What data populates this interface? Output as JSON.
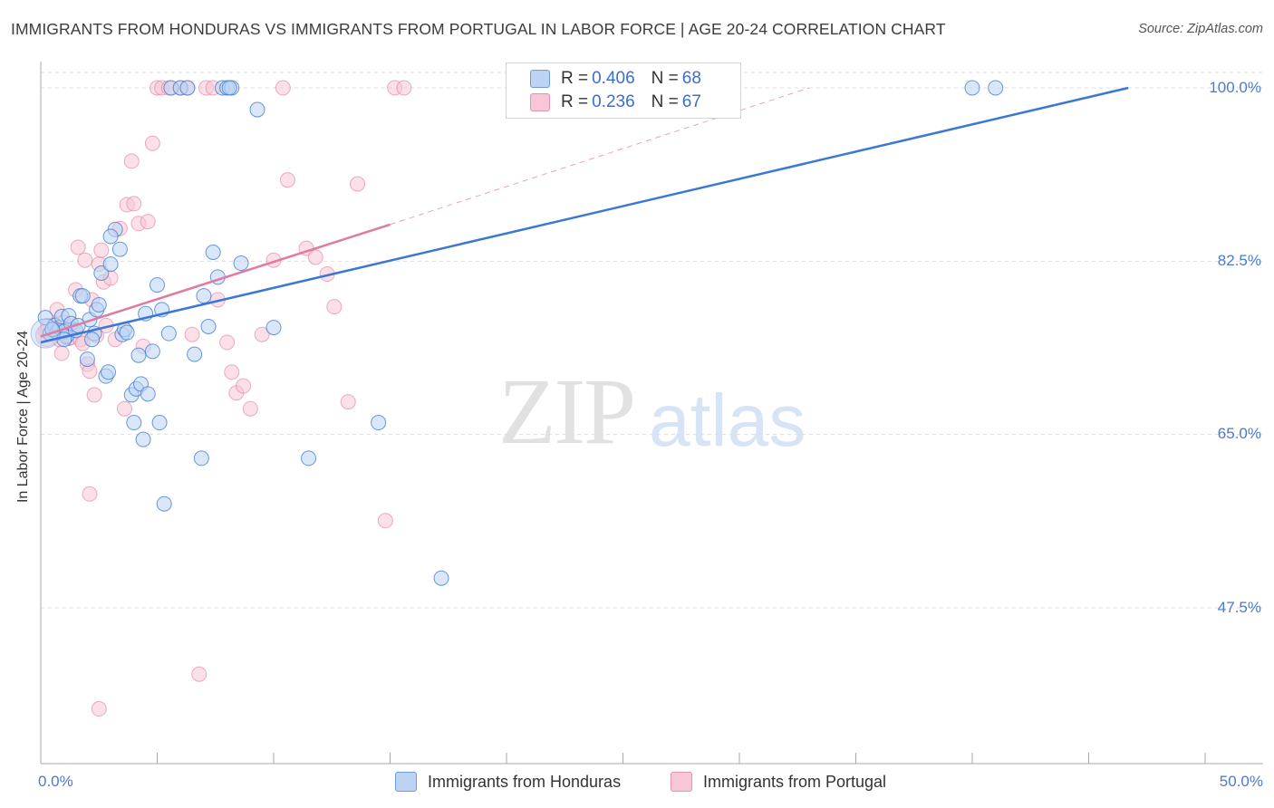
{
  "header": {
    "title": "IMMIGRANTS FROM HONDURAS VS IMMIGRANTS FROM PORTUGAL IN LABOR FORCE | AGE 20-24 CORRELATION CHART",
    "source": "Source: ZipAtlas.com"
  },
  "watermark": {
    "zip": "ZIP",
    "atlas": "atlas"
  },
  "legend": {
    "honduras": {
      "r_label": "R = ",
      "r_value": "0.406",
      "n_label": "N = ",
      "n_value": "68"
    },
    "portugal": {
      "r_label": "R = ",
      "r_value": "0.236",
      "n_label": "N = ",
      "n_value": "67"
    }
  },
  "chart_data": {
    "type": "scatter",
    "title": "IMMIGRANTS FROM HONDURAS VS IMMIGRANTS FROM PORTUGAL IN LABOR FORCE | AGE 20-24 CORRELATION CHART",
    "xlabel": "",
    "ylabel": "In Labor Force | Age 20-24",
    "xlim": [
      0,
      50
    ],
    "ylim": [
      33,
      100
    ],
    "x_tick_labels": [
      "0.0%",
      "50.0%"
    ],
    "y_ticks": [
      47.5,
      65.0,
      82.5,
      100.0
    ],
    "y_tick_labels": [
      "47.5%",
      "65.0%",
      "82.5%",
      "100.0%"
    ],
    "grid": true,
    "colors": {
      "honduras": "#3a78d4",
      "portugal": "#e07aa0",
      "honduras_fill": "#bcd3f3",
      "portugal_fill": "#f8c6d6"
    },
    "series": [
      {
        "name": "Immigrants from Honduras",
        "r": 0.406,
        "n": 68,
        "trend": {
          "x": [
            0,
            46.7
          ],
          "y": [
            74.3,
            100.0
          ]
        },
        "points": [
          [
            0.2,
            76.8
          ],
          [
            0.4,
            75.2
          ],
          [
            0.5,
            75.6
          ],
          [
            0.6,
            76.0
          ],
          [
            0.7,
            75.3
          ],
          [
            0.8,
            75.8
          ],
          [
            0.9,
            76.9
          ],
          [
            1.0,
            75.4
          ],
          [
            1.1,
            74.9
          ],
          [
            1.2,
            77.0
          ],
          [
            1.3,
            76.2
          ],
          [
            1.5,
            75.5
          ],
          [
            1.7,
            79.0
          ],
          [
            1.8,
            79.0
          ],
          [
            2.0,
            72.6
          ],
          [
            2.1,
            76.6
          ],
          [
            2.3,
            75.2
          ],
          [
            2.4,
            77.6
          ],
          [
            2.5,
            78.1
          ],
          [
            2.6,
            81.3
          ],
          [
            2.8,
            70.9
          ],
          [
            2.9,
            71.3
          ],
          [
            3.0,
            82.2
          ],
          [
            3.2,
            85.7
          ],
          [
            3.4,
            83.7
          ],
          [
            3.5,
            75.1
          ],
          [
            3.6,
            75.6
          ],
          [
            3.7,
            75.3
          ],
          [
            3.9,
            69.0
          ],
          [
            4.0,
            66.2
          ],
          [
            4.1,
            69.6
          ],
          [
            4.2,
            73.0
          ],
          [
            4.3,
            70.1
          ],
          [
            4.5,
            77.2
          ],
          [
            4.6,
            69.1
          ],
          [
            4.8,
            73.4
          ],
          [
            5.0,
            80.1
          ],
          [
            5.1,
            66.2
          ],
          [
            5.2,
            77.6
          ],
          [
            5.3,
            58.0
          ],
          [
            5.6,
            100.0
          ],
          [
            6.0,
            100.0
          ],
          [
            6.3,
            100.0
          ],
          [
            6.6,
            73.1
          ],
          [
            6.9,
            62.6
          ],
          [
            7.0,
            79.0
          ],
          [
            7.4,
            83.4
          ],
          [
            7.6,
            80.9
          ],
          [
            7.8,
            100.0
          ],
          [
            8.0,
            100.0
          ],
          [
            8.2,
            100.0
          ],
          [
            8.6,
            82.3
          ],
          [
            9.3,
            97.8
          ],
          [
            10.0,
            75.8
          ],
          [
            11.5,
            62.6
          ],
          [
            14.5,
            66.2
          ],
          [
            17.2,
            50.5
          ],
          [
            0.5,
            75.6
          ],
          [
            1.0,
            74.6
          ],
          [
            1.6,
            76.0
          ],
          [
            2.2,
            74.6
          ],
          [
            3.0,
            85.0
          ],
          [
            4.4,
            64.5
          ],
          [
            5.5,
            75.2
          ],
          [
            7.2,
            75.9
          ],
          [
            8.1,
            100.0
          ],
          [
            40.0,
            100.0
          ],
          [
            41.0,
            100.0
          ]
        ]
      },
      {
        "name": "Immigrants from Portugal",
        "r": 0.236,
        "n": 67,
        "trend": {
          "x": [
            0,
            15.0
          ],
          "y": [
            74.9,
            86.2
          ]
        },
        "trend_extension": {
          "x": [
            15.0,
            33.0
          ],
          "y": [
            86.2,
            100.0
          ]
        },
        "points": [
          [
            0.2,
            75.4
          ],
          [
            0.3,
            76.0
          ],
          [
            0.4,
            75.2
          ],
          [
            0.6,
            76.1
          ],
          [
            0.7,
            77.6
          ],
          [
            0.8,
            74.6
          ],
          [
            0.9,
            73.2
          ],
          [
            1.0,
            76.3
          ],
          [
            1.1,
            75.5
          ],
          [
            1.2,
            74.7
          ],
          [
            1.3,
            74.8
          ],
          [
            1.4,
            75.6
          ],
          [
            1.5,
            79.6
          ],
          [
            1.6,
            83.9
          ],
          [
            1.7,
            74.6
          ],
          [
            1.8,
            74.2
          ],
          [
            1.9,
            82.6
          ],
          [
            2.0,
            72.1
          ],
          [
            2.1,
            71.4
          ],
          [
            2.2,
            78.6
          ],
          [
            2.3,
            69.0
          ],
          [
            2.4,
            75.0
          ],
          [
            2.5,
            82.2
          ],
          [
            2.6,
            83.6
          ],
          [
            2.7,
            80.4
          ],
          [
            2.8,
            76.0
          ],
          [
            3.0,
            80.8
          ],
          [
            3.2,
            74.6
          ],
          [
            3.4,
            85.8
          ],
          [
            3.6,
            67.6
          ],
          [
            3.7,
            88.2
          ],
          [
            3.9,
            92.6
          ],
          [
            4.0,
            88.3
          ],
          [
            4.2,
            86.3
          ],
          [
            4.4,
            73.9
          ],
          [
            4.6,
            86.5
          ],
          [
            4.8,
            94.4
          ],
          [
            5.0,
            100.0
          ],
          [
            5.2,
            100.0
          ],
          [
            5.5,
            100.0
          ],
          [
            6.0,
            100.0
          ],
          [
            6.3,
            100.0
          ],
          [
            6.5,
            75.1
          ],
          [
            6.8,
            40.8
          ],
          [
            7.1,
            100.0
          ],
          [
            7.4,
            100.0
          ],
          [
            7.6,
            78.6
          ],
          [
            8.0,
            74.3
          ],
          [
            8.2,
            71.3
          ],
          [
            8.4,
            69.2
          ],
          [
            8.7,
            69.9
          ],
          [
            9.0,
            67.6
          ],
          [
            9.5,
            75.1
          ],
          [
            10.0,
            82.6
          ],
          [
            10.6,
            90.7
          ],
          [
            11.4,
            83.8
          ],
          [
            11.8,
            82.9
          ],
          [
            12.3,
            81.2
          ],
          [
            12.6,
            77.9
          ],
          [
            13.2,
            68.3
          ],
          [
            13.6,
            90.3
          ],
          [
            14.8,
            56.3
          ],
          [
            15.2,
            100.0
          ],
          [
            15.6,
            100.0
          ],
          [
            2.1,
            59.0
          ],
          [
            2.5,
            37.3
          ],
          [
            10.4,
            100.0
          ]
        ]
      }
    ]
  },
  "axes": {
    "y_label": "In Labor Force | Age 20-24",
    "x_min_label": "0.0%",
    "x_max_label": "50.0%",
    "y_ticks": [
      "100.0%",
      "82.5%",
      "65.0%",
      "47.5%"
    ]
  },
  "bottom_legend": {
    "honduras_label": "Immigrants from Honduras",
    "portugal_label": "Immigrants from Portugal"
  }
}
